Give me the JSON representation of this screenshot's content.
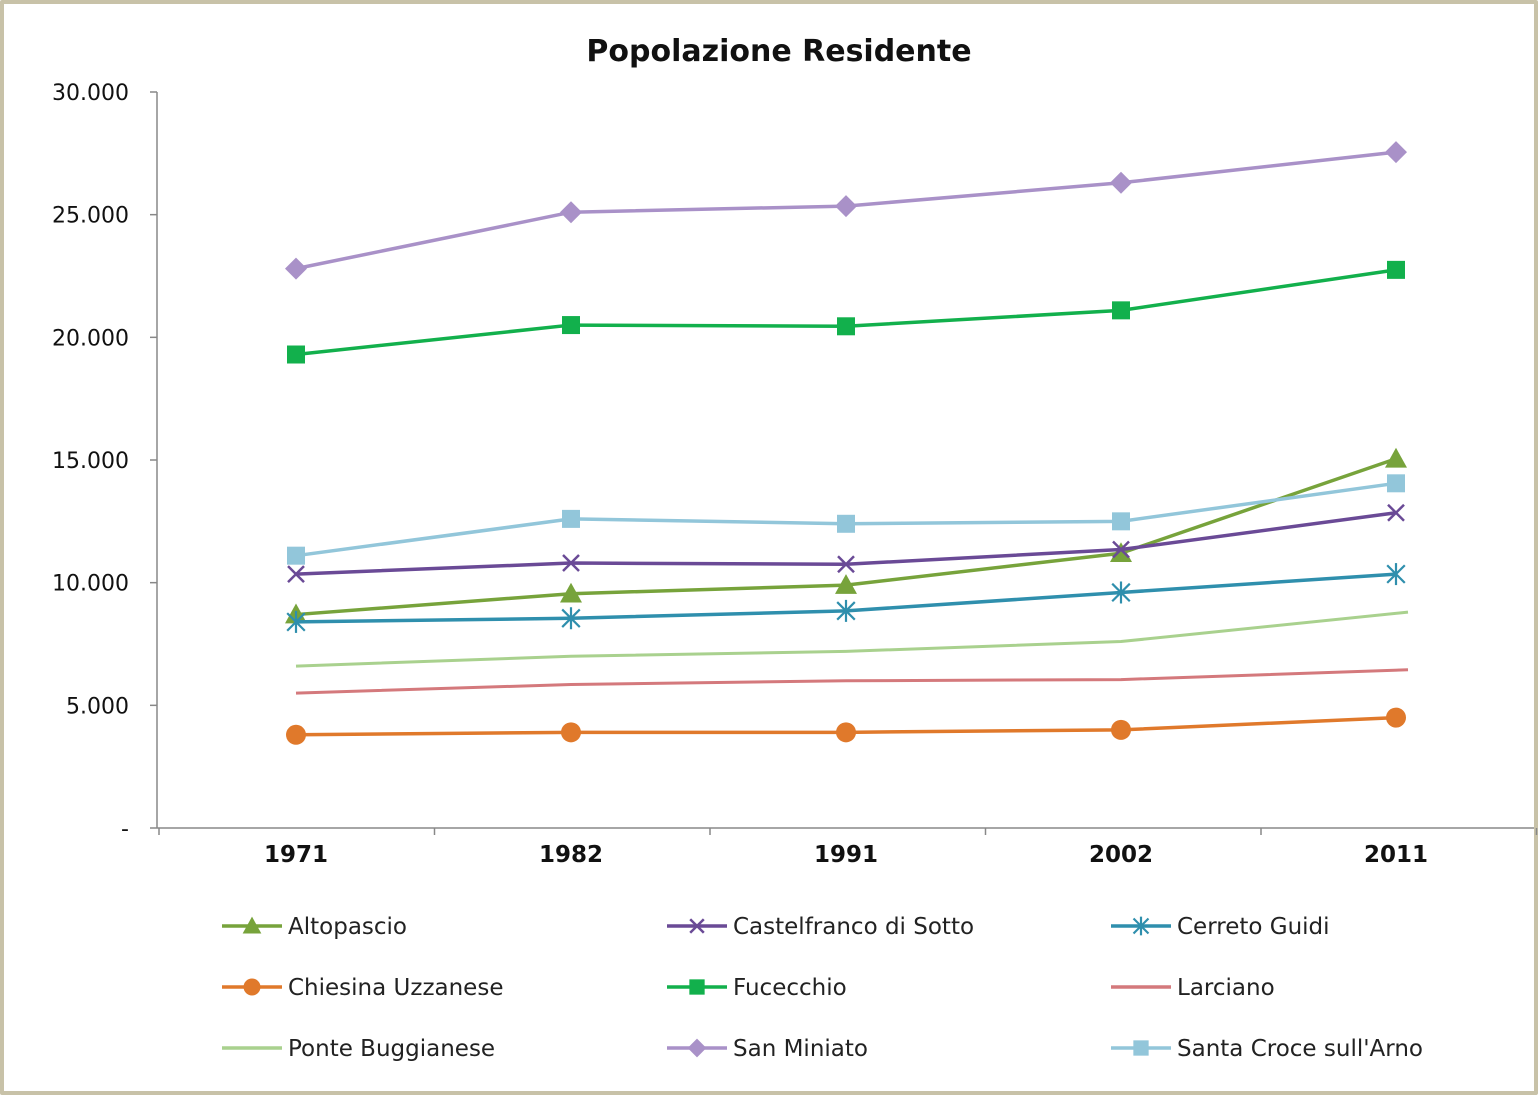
{
  "chart_data": {
    "type": "line",
    "title": "Popolazione Residente",
    "xlabel": "",
    "ylabel": "",
    "categories": [
      "1971",
      "1982",
      "1991",
      "2002",
      "2011"
    ],
    "ylim": [
      0,
      30000
    ],
    "yticks": [
      0,
      5000,
      10000,
      15000,
      20000,
      25000,
      30000
    ],
    "ytick_labels": [
      "-",
      "5.000",
      "10.000",
      "15.000",
      "20.000",
      "25.000",
      "30.000"
    ],
    "grid": false,
    "legend_position": "bottom",
    "series": [
      {
        "name": "Altopascio",
        "color": "#77a33b",
        "marker": "triangle",
        "values": [
          8700,
          9550,
          9900,
          11200,
          15050
        ]
      },
      {
        "name": "Castelfranco di Sotto",
        "color": "#6a4a96",
        "marker": "x",
        "values": [
          10350,
          10800,
          10750,
          11350,
          12850
        ]
      },
      {
        "name": "Cerreto Guidi",
        "color": "#2f8fad",
        "marker": "star",
        "values": [
          8400,
          8550,
          8850,
          9600,
          10350
        ]
      },
      {
        "name": "Chiesina Uzzanese",
        "color": "#e0792b",
        "marker": "circle",
        "values": [
          3800,
          3900,
          3900,
          4000,
          4500
        ]
      },
      {
        "name": "Fucecchio",
        "color": "#12b04c",
        "marker": "square",
        "values": [
          19300,
          20500,
          20450,
          21100,
          22750
        ]
      },
      {
        "name": "Larciano",
        "color": "#d4797c",
        "marker": "none",
        "values": [
          5500,
          5850,
          6000,
          6050,
          6450
        ]
      },
      {
        "name": "Ponte Buggianese",
        "color": "#a9d18e",
        "marker": "none",
        "values": [
          6600,
          7000,
          7200,
          7600,
          8800
        ]
      },
      {
        "name": "San Miniato",
        "color": "#a991c8",
        "marker": "diamond",
        "values": [
          22800,
          25100,
          25350,
          26300,
          27550
        ]
      },
      {
        "name": "Santa Croce sull'Arno",
        "color": "#92c6da",
        "marker": "square",
        "values": [
          11100,
          12600,
          12400,
          12500,
          14050
        ]
      }
    ]
  }
}
